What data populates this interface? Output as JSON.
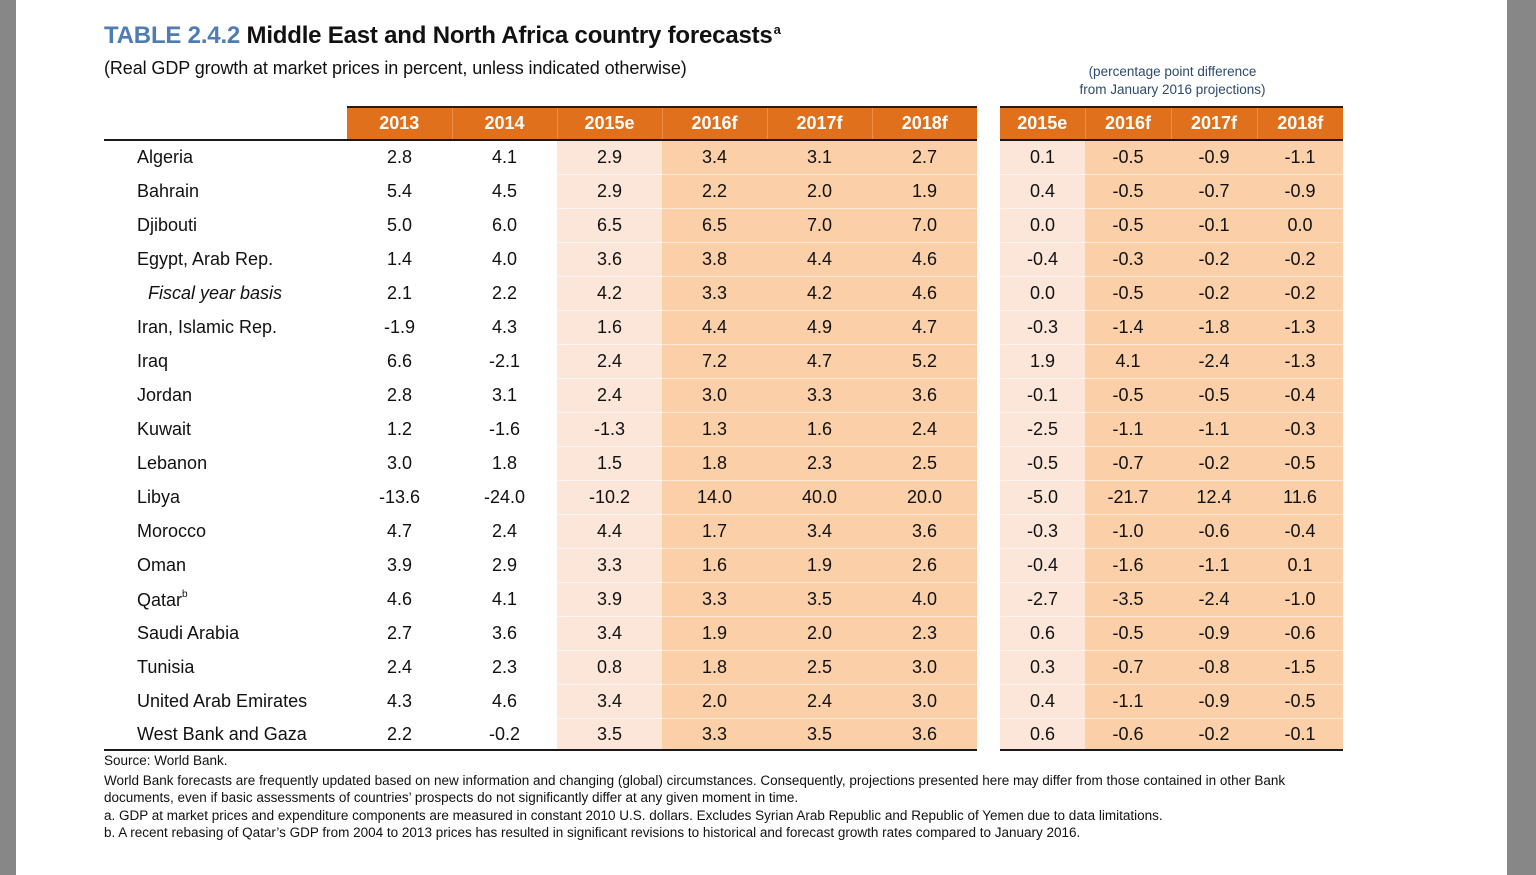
{
  "title": {
    "number": "TABLE 2.4.2",
    "text": "Middle East and North Africa country forecasts",
    "footnote_mark": "a"
  },
  "subtitle": "(Real GDP growth at market prices in percent, unless indicated otherwise)",
  "difference_note": {
    "line1": "(percentage  point difference",
    "line2": "from January 2016 projections)"
  },
  "colors": {
    "header_orange": "#e1701c",
    "estimate_shade": "#fce6d9",
    "forecast_shade": "#fbcfa7",
    "title_number_blue": "#4f7db3"
  },
  "main_table": {
    "columns": [
      "2013",
      "2014",
      "2015e",
      "2016f",
      "2017f",
      "2018f"
    ],
    "rows": [
      {
        "country": "Algeria",
        "values": [
          "2.8",
          "4.1",
          "2.9",
          "3.4",
          "3.1",
          "2.7"
        ]
      },
      {
        "country": "Bahrain",
        "values": [
          "5.4",
          "4.5",
          "2.9",
          "2.2",
          "2.0",
          "1.9"
        ]
      },
      {
        "country": "Djibouti",
        "values": [
          "5.0",
          "6.0",
          "6.5",
          "6.5",
          "7.0",
          "7.0"
        ]
      },
      {
        "country": "Egypt, Arab Rep.",
        "values": [
          "1.4",
          "4.0",
          "3.6",
          "3.8",
          "4.4",
          "4.6"
        ]
      },
      {
        "country": "Fiscal year basis",
        "values": [
          "2.1",
          "2.2",
          "4.2",
          "3.3",
          "4.2",
          "4.6"
        ]
      },
      {
        "country": "Iran, Islamic Rep.",
        "values": [
          "-1.9",
          "4.3",
          "1.6",
          "4.4",
          "4.9",
          "4.7"
        ]
      },
      {
        "country": "Iraq",
        "values": [
          "6.6",
          "-2.1",
          "2.4",
          "7.2",
          "4.7",
          "5.2"
        ]
      },
      {
        "country": "Jordan",
        "values": [
          "2.8",
          "3.1",
          "2.4",
          "3.0",
          "3.3",
          "3.6"
        ]
      },
      {
        "country": "Kuwait",
        "values": [
          "1.2",
          "-1.6",
          "-1.3",
          "1.3",
          "1.6",
          "2.4"
        ]
      },
      {
        "country": "Lebanon",
        "values": [
          "3.0",
          "1.8",
          "1.5",
          "1.8",
          "2.3",
          "2.5"
        ]
      },
      {
        "country": "Libya",
        "values": [
          "-13.6",
          "-24.0",
          "-10.2",
          "14.0",
          "40.0",
          "20.0"
        ]
      },
      {
        "country": "Morocco",
        "values": [
          "4.7",
          "2.4",
          "4.4",
          "1.7",
          "3.4",
          "3.6"
        ]
      },
      {
        "country": "Oman",
        "values": [
          "3.9",
          "2.9",
          "3.3",
          "1.6",
          "1.9",
          "2.6"
        ]
      },
      {
        "country": "Qatar",
        "footnote": "b",
        "values": [
          "4.6",
          "4.1",
          "3.9",
          "3.3",
          "3.5",
          "4.0"
        ]
      },
      {
        "country": "Saudi Arabia",
        "values": [
          "2.7",
          "3.6",
          "3.4",
          "1.9",
          "2.0",
          "2.3"
        ]
      },
      {
        "country": "Tunisia",
        "values": [
          "2.4",
          "2.3",
          "0.8",
          "1.8",
          "2.5",
          "3.0"
        ]
      },
      {
        "country": "United Arab Emirates",
        "values": [
          "4.3",
          "4.6",
          "3.4",
          "2.0",
          "2.4",
          "3.0"
        ]
      },
      {
        "country": "West Bank and Gaza",
        "values": [
          "2.2",
          "-0.2",
          "3.5",
          "3.3",
          "3.5",
          "3.6"
        ]
      }
    ]
  },
  "diff_table": {
    "columns": [
      "2015e",
      "2016f",
      "2017f",
      "2018f"
    ],
    "rows": [
      [
        "0.1",
        "-0.5",
        "-0.9",
        "-1.1"
      ],
      [
        "0.4",
        "-0.5",
        "-0.7",
        "-0.9"
      ],
      [
        "0.0",
        "-0.5",
        "-0.1",
        "0.0"
      ],
      [
        "-0.4",
        "-0.3",
        "-0.2",
        "-0.2"
      ],
      [
        "0.0",
        "-0.5",
        "-0.2",
        "-0.2"
      ],
      [
        "-0.3",
        "-1.4",
        "-1.8",
        "-1.3"
      ],
      [
        "1.9",
        "4.1",
        "-2.4",
        "-1.3"
      ],
      [
        "-0.1",
        "-0.5",
        "-0.5",
        "-0.4"
      ],
      [
        "-2.5",
        "-1.1",
        "-1.1",
        "-0.3"
      ],
      [
        "-0.5",
        "-0.7",
        "-0.2",
        "-0.5"
      ],
      [
        "-5.0",
        "-21.7",
        "12.4",
        "11.6"
      ],
      [
        "-0.3",
        "-1.0",
        "-0.6",
        "-0.4"
      ],
      [
        "-0.4",
        "-1.6",
        "-1.1",
        "0.1"
      ],
      [
        "-2.7",
        "-3.5",
        "-2.4",
        "-1.0"
      ],
      [
        "0.6",
        "-0.5",
        "-0.9",
        "-0.6"
      ],
      [
        "0.3",
        "-0.7",
        "-0.8",
        "-1.5"
      ],
      [
        "0.4",
        "-1.1",
        "-0.9",
        "-0.5"
      ],
      [
        "0.6",
        "-0.6",
        "-0.2",
        "-0.1"
      ]
    ]
  },
  "notes": {
    "source": "Source: World Bank.",
    "disclaimer": "World Bank forecasts are frequently updated based on new information and changing (global) circumstances. Consequently, projections presented here may differ from those contained in other Bank documents, even if basic assessments of countries’ prospects do not significantly differ at any given moment in time.",
    "note_a": "a. GDP at market prices and expenditure components are measured in constant 2010 U.S. dollars. Excludes Syrian Arab Republic and Republic of Yemen due to data limitations.",
    "note_b": "b. A recent rebasing of Qatar’s GDP from 2004 to 2013 prices has resulted in significant revisions to historical and forecast growth rates compared to January 2016."
  },
  "chart_data": {
    "type": "table",
    "title": "TABLE 2.4.2 Middle East and North Africa country forecasts",
    "subtitle": "(Real GDP growth at market prices in percent, unless indicated otherwise)",
    "categories": [
      "Algeria",
      "Bahrain",
      "Djibouti",
      "Egypt, Arab Rep.",
      "Fiscal year basis",
      "Iran, Islamic Rep.",
      "Iraq",
      "Jordan",
      "Kuwait",
      "Lebanon",
      "Libya",
      "Morocco",
      "Oman",
      "Qatar",
      "Saudi Arabia",
      "Tunisia",
      "United Arab Emirates",
      "West Bank and Gaza"
    ],
    "series": [
      {
        "name": "2013",
        "values": [
          2.8,
          5.4,
          5.0,
          1.4,
          2.1,
          -1.9,
          6.6,
          2.8,
          1.2,
          3.0,
          -13.6,
          4.7,
          3.9,
          4.6,
          2.7,
          2.4,
          4.3,
          2.2
        ]
      },
      {
        "name": "2014",
        "values": [
          4.1,
          4.5,
          6.0,
          4.0,
          2.2,
          4.3,
          -2.1,
          3.1,
          -1.6,
          1.8,
          -24.0,
          2.4,
          2.9,
          4.1,
          3.6,
          2.3,
          4.6,
          -0.2
        ]
      },
      {
        "name": "2015e",
        "values": [
          2.9,
          2.9,
          6.5,
          3.6,
          4.2,
          1.6,
          2.4,
          2.4,
          -1.3,
          1.5,
          -10.2,
          4.4,
          3.3,
          3.9,
          3.4,
          0.8,
          3.4,
          3.5
        ]
      },
      {
        "name": "2016f",
        "values": [
          3.4,
          2.2,
          6.5,
          3.8,
          3.3,
          4.4,
          7.2,
          3.0,
          1.3,
          1.8,
          14.0,
          1.7,
          1.6,
          3.3,
          1.9,
          1.8,
          2.0,
          3.3
        ]
      },
      {
        "name": "2017f",
        "values": [
          3.1,
          2.0,
          7.0,
          4.4,
          4.2,
          4.9,
          4.7,
          3.3,
          1.6,
          2.3,
          40.0,
          3.4,
          1.9,
          3.5,
          2.0,
          2.5,
          2.4,
          3.5
        ]
      },
      {
        "name": "2018f",
        "values": [
          2.7,
          1.9,
          7.0,
          4.6,
          4.6,
          4.7,
          5.2,
          3.6,
          2.4,
          2.5,
          20.0,
          3.6,
          2.6,
          4.0,
          2.3,
          3.0,
          3.0,
          3.6
        ]
      },
      {
        "name": "Diff 2015e",
        "values": [
          0.1,
          0.4,
          0.0,
          -0.4,
          0.0,
          -0.3,
          1.9,
          -0.1,
          -2.5,
          -0.5,
          -5.0,
          -0.3,
          -0.4,
          -2.7,
          0.6,
          0.3,
          0.4,
          0.6
        ]
      },
      {
        "name": "Diff 2016f",
        "values": [
          -0.5,
          -0.5,
          -0.5,
          -0.3,
          -0.5,
          -1.4,
          4.1,
          -0.5,
          -1.1,
          -0.7,
          -21.7,
          -1.0,
          -1.6,
          -3.5,
          -0.5,
          -0.7,
          -1.1,
          -0.6
        ]
      },
      {
        "name": "Diff 2017f",
        "values": [
          -0.9,
          -0.7,
          -0.1,
          -0.2,
          -0.2,
          -1.8,
          -2.4,
          -0.5,
          -1.1,
          -0.2,
          12.4,
          -0.6,
          -1.1,
          -2.4,
          -0.9,
          -0.8,
          -0.9,
          -0.2
        ]
      },
      {
        "name": "Diff 2018f",
        "values": [
          -1.1,
          -0.9,
          0.0,
          -0.2,
          -0.2,
          -1.3,
          -1.3,
          -0.4,
          -0.3,
          -0.5,
          11.6,
          -0.4,
          0.1,
          -1.0,
          -0.6,
          -1.5,
          -0.5,
          -0.1
        ]
      }
    ]
  }
}
